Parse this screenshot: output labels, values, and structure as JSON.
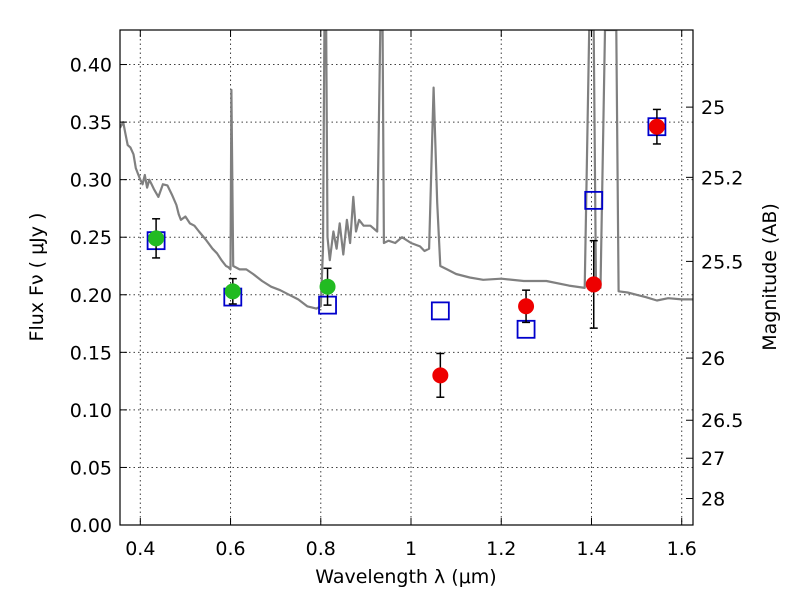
{
  "chart_data": {
    "type": "scatter",
    "title": "",
    "xlabel": "Wavelength  λ (μm)",
    "ylabel": "Flux  Fν  ( μJy )",
    "ylabel_right": "Magnitude (AB)",
    "xlim": [
      0.355,
      1.625
    ],
    "ylim": [
      0.0,
      0.43
    ],
    "grid": true,
    "x_ticks": [
      0.4,
      0.6,
      0.8,
      1.0,
      1.2,
      1.4,
      1.6
    ],
    "x_tick_labels": [
      "0.4",
      "0.6",
      "0.8",
      "1",
      "1.2",
      "1.4",
      "1.6"
    ],
    "y_ticks": [
      0.0,
      0.05,
      0.1,
      0.15,
      0.2,
      0.25,
      0.3,
      0.35,
      0.4
    ],
    "y_tick_labels": [
      "0.00",
      "0.05",
      "0.10",
      "0.15",
      "0.20",
      "0.25",
      "0.30",
      "0.35",
      "0.40"
    ],
    "right_ticks": [
      {
        "label": "25",
        "flux": 0.363
      },
      {
        "label": "25.2",
        "flux": 0.302
      },
      {
        "label": "25.5",
        "flux": 0.229
      },
      {
        "label": "26",
        "flux": 0.145
      },
      {
        "label": "26.5",
        "flux": 0.091
      },
      {
        "label": "27",
        "flux": 0.058
      },
      {
        "label": "28",
        "flux": 0.023
      }
    ],
    "colors": {
      "spectrum": "#808080",
      "model": "#0000cc",
      "green": "#22bb22",
      "red": "#ee0000",
      "errorbar": "#000000"
    },
    "series": [
      {
        "kind": "line",
        "points": [
          [
            0.355,
            0.345
          ],
          [
            0.362,
            0.35
          ],
          [
            0.367,
            0.34
          ],
          [
            0.372,
            0.33
          ],
          [
            0.378,
            0.328
          ],
          [
            0.385,
            0.322
          ],
          [
            0.39,
            0.31
          ],
          [
            0.395,
            0.305
          ],
          [
            0.4,
            0.3
          ],
          [
            0.405,
            0.296
          ],
          [
            0.41,
            0.304
          ],
          [
            0.415,
            0.293
          ],
          [
            0.42,
            0.3
          ],
          [
            0.425,
            0.296
          ],
          [
            0.43,
            0.292
          ],
          [
            0.44,
            0.285
          ],
          [
            0.45,
            0.296
          ],
          [
            0.46,
            0.295
          ],
          [
            0.47,
            0.287
          ],
          [
            0.48,
            0.278
          ],
          [
            0.485,
            0.27
          ],
          [
            0.49,
            0.265
          ],
          [
            0.5,
            0.268
          ],
          [
            0.51,
            0.262
          ],
          [
            0.52,
            0.26
          ],
          [
            0.53,
            0.255
          ],
          [
            0.545,
            0.248
          ],
          [
            0.56,
            0.24
          ],
          [
            0.57,
            0.236
          ],
          [
            0.58,
            0.23
          ],
          [
            0.59,
            0.225
          ],
          [
            0.595,
            0.224
          ],
          [
            0.6,
            0.222
          ],
          [
            0.602,
            0.378
          ],
          [
            0.606,
            0.225
          ],
          [
            0.62,
            0.222
          ],
          [
            0.635,
            0.222
          ],
          [
            0.65,
            0.218
          ],
          [
            0.67,
            0.212
          ],
          [
            0.69,
            0.207
          ],
          [
            0.71,
            0.204
          ],
          [
            0.73,
            0.2
          ],
          [
            0.75,
            0.196
          ],
          [
            0.77,
            0.19
          ],
          [
            0.79,
            0.188
          ],
          [
            0.8,
            0.19
          ],
          [
            0.805,
            0.24
          ],
          [
            0.808,
            0.43
          ],
          [
            0.812,
            0.43
          ],
          [
            0.815,
            0.25
          ],
          [
            0.82,
            0.23
          ],
          [
            0.828,
            0.255
          ],
          [
            0.835,
            0.24
          ],
          [
            0.842,
            0.262
          ],
          [
            0.85,
            0.235
          ],
          [
            0.858,
            0.265
          ],
          [
            0.865,
            0.245
          ],
          [
            0.872,
            0.285
          ],
          [
            0.878,
            0.255
          ],
          [
            0.885,
            0.265
          ],
          [
            0.895,
            0.26
          ],
          [
            0.91,
            0.26
          ],
          [
            0.925,
            0.255
          ],
          [
            0.932,
            0.43
          ],
          [
            0.937,
            0.43
          ],
          [
            0.94,
            0.245
          ],
          [
            0.95,
            0.247
          ],
          [
            0.965,
            0.245
          ],
          [
            0.98,
            0.25
          ],
          [
            1.0,
            0.245
          ],
          [
            1.02,
            0.242
          ],
          [
            1.03,
            0.238
          ],
          [
            1.04,
            0.24
          ],
          [
            1.05,
            0.38
          ],
          [
            1.058,
            0.28
          ],
          [
            1.065,
            0.225
          ],
          [
            1.08,
            0.222
          ],
          [
            1.1,
            0.218
          ],
          [
            1.13,
            0.215
          ],
          [
            1.16,
            0.213
          ],
          [
            1.2,
            0.214
          ],
          [
            1.25,
            0.212
          ],
          [
            1.3,
            0.212
          ],
          [
            1.35,
            0.208
          ],
          [
            1.385,
            0.206
          ],
          [
            1.395,
            0.43
          ],
          [
            1.405,
            0.43
          ],
          [
            1.41,
            0.206
          ],
          [
            1.42,
            0.206
          ],
          [
            1.43,
            0.43
          ],
          [
            1.445,
            0.43
          ],
          [
            1.455,
            0.43
          ],
          [
            1.46,
            0.203
          ],
          [
            1.48,
            0.202
          ],
          [
            1.5,
            0.2
          ],
          [
            1.52,
            0.198
          ],
          [
            1.545,
            0.195
          ],
          [
            1.57,
            0.197
          ],
          [
            1.6,
            0.196
          ],
          [
            1.625,
            0.196
          ]
        ]
      },
      {
        "kind": "open-square",
        "points": [
          {
            "x": 0.435,
            "y": 0.247
          },
          {
            "x": 0.605,
            "y": 0.198
          },
          {
            "x": 0.815,
            "y": 0.191
          },
          {
            "x": 1.065,
            "y": 0.186
          },
          {
            "x": 1.255,
            "y": 0.17
          },
          {
            "x": 1.405,
            "y": 0.282
          },
          {
            "x": 1.545,
            "y": 0.346
          }
        ]
      },
      {
        "kind": "filled-circle-green",
        "points": [
          {
            "x": 0.435,
            "y": 0.249,
            "err": 0.017
          },
          {
            "x": 0.605,
            "y": 0.203,
            "err": 0.011
          },
          {
            "x": 0.815,
            "y": 0.207,
            "err": 0.016
          }
        ]
      },
      {
        "kind": "filled-circle-red",
        "points": [
          {
            "x": 1.065,
            "y": 0.13,
            "err": 0.019
          },
          {
            "x": 1.255,
            "y": 0.19,
            "err": 0.014
          },
          {
            "x": 1.405,
            "y": 0.209,
            "err": 0.038
          },
          {
            "x": 1.545,
            "y": 0.346,
            "err": 0.015
          }
        ]
      }
    ]
  }
}
